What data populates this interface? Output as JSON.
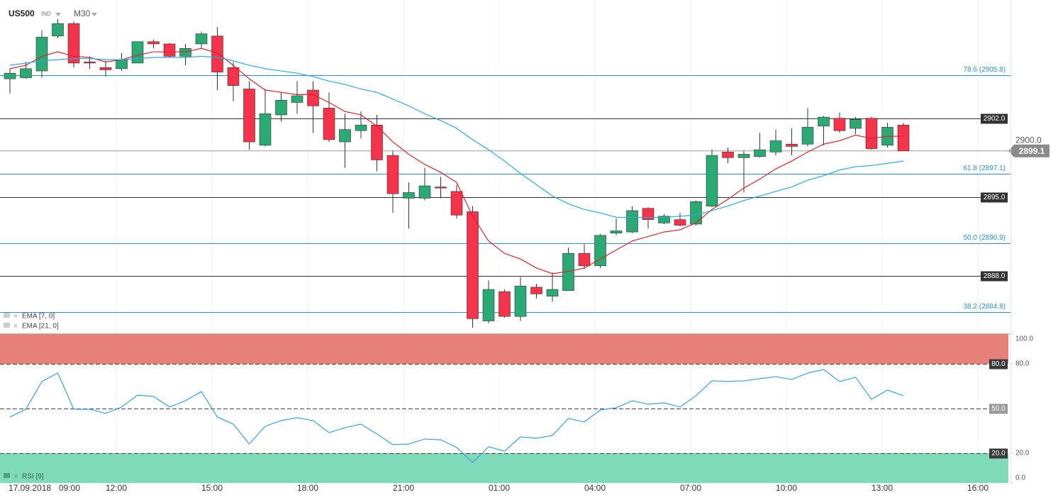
{
  "header": {
    "symbol": "US500",
    "kind": "IND",
    "timeframe": "M30"
  },
  "chart_data": [
    {
      "type": "candlestick",
      "x_start": [
        "17.09.2018",
        "09:00"
      ],
      "categories": [
        null,
        null,
        null,
        null,
        null,
        null,
        null,
        "12:00",
        null,
        null,
        null,
        null,
        null,
        "15:00",
        null,
        null,
        null,
        null,
        null,
        "18:00",
        null,
        null,
        null,
        null,
        null,
        "21:00",
        null,
        null,
        null,
        null,
        null,
        "01:00",
        null,
        null,
        null,
        null,
        null,
        "04:00",
        null,
        null,
        null,
        null,
        null,
        "07:00",
        null,
        null,
        null,
        null,
        null,
        "10:00",
        null,
        null,
        null,
        null,
        null,
        "13:00",
        null,
        null,
        null,
        null,
        null,
        "16:00",
        null
      ],
      "open": [
        2905.5,
        2905.6,
        2906.2,
        2909.3,
        2910.4,
        2907.0,
        2906.5,
        2906.4,
        2906.9,
        2908.8,
        2908.6,
        2907.5,
        2908.6,
        2909.3,
        2906.5,
        2904.6,
        2899.6,
        2902.3,
        2903.4,
        2904.5,
        2902.9,
        2899.9,
        2900.9,
        2901.4,
        2898.7,
        2894.9,
        2894.9,
        2895.9,
        2895.5,
        2893.7,
        2884.0,
        2886.6,
        2884.4,
        2887.0,
        2886.2,
        2886.7,
        2890.0,
        2888.9,
        2891.8,
        2891.9,
        2894.0,
        2892.7,
        2893.0,
        2892.6,
        2894.2,
        2899.0,
        2898.5,
        2898.6,
        2899.0,
        2899.7,
        2899.7,
        2901.3,
        2902.0,
        2901.1,
        2902.0,
        2899.6,
        2901.4,
        null,
        null,
        null,
        null,
        null,
        null
      ],
      "high": [
        2906.4,
        2907.0,
        2909.8,
        2910.8,
        2910.6,
        2907.5,
        2907.1,
        2907.8,
        2908.8,
        2909.0,
        2908.7,
        2908.6,
        2909.7,
        2910.1,
        2907.0,
        2905.3,
        2904.6,
        2904.3,
        2905.3,
        2905.3,
        2904.3,
        2902.4,
        2902.6,
        2902.3,
        2899.1,
        2896.3,
        2897.6,
        2896.8,
        2896.1,
        2894.2,
        2887.6,
        2886.8,
        2887.9,
        2887.3,
        2888.3,
        2890.5,
        2890.8,
        2891.7,
        2893.1,
        2894.2,
        2894.1,
        2893.5,
        2893.6,
        2894.7,
        2899.2,
        2899.4,
        2899.1,
        2900.7,
        2901.0,
        2901.1,
        2902.9,
        2902.2,
        2902.5,
        2902.1,
        2902.1,
        2901.6,
        2901.6,
        null,
        null,
        null,
        null,
        null,
        null
      ],
      "low": [
        2904.2,
        2905.5,
        2905.6,
        2909.1,
        2906.5,
        2906.4,
        2905.7,
        2906.2,
        2906.9,
        2908.2,
        2907.4,
        2906.7,
        2908.2,
        2904.5,
        2903.5,
        2899.2,
        2899.5,
        2901.7,
        2902.4,
        2900.7,
        2899.9,
        2897.6,
        2900.2,
        2897.3,
        2893.6,
        2892.2,
        2894.7,
        2894.9,
        2893.1,
        2883.4,
        2883.8,
        2884.3,
        2884.0,
        2886.0,
        2885.7,
        2886.7,
        2888.6,
        2888.7,
        2891.6,
        2891.8,
        2892.2,
        2892.6,
        2892.4,
        2892.5,
        2894.1,
        2898.0,
        2895.4,
        2898.5,
        2898.7,
        2898.7,
        2899.5,
        2899.6,
        2900.7,
        2900.6,
        2899.2,
        2899.4,
        2899.1,
        null,
        null,
        null,
        null,
        null,
        null
      ],
      "close": [
        2906.0,
        2906.4,
        2909.2,
        2910.4,
        2906.9,
        2906.9,
        2906.3,
        2907.2,
        2908.8,
        2908.6,
        2907.5,
        2908.2,
        2909.5,
        2906.1,
        2904.9,
        2899.9,
        2902.4,
        2903.6,
        2904.0,
        2903.1,
        2900.1,
        2901.0,
        2901.4,
        2898.3,
        2895.3,
        2895.4,
        2896.0,
        2895.8,
        2893.4,
        2884.2,
        2886.8,
        2884.4,
        2887.1,
        2886.4,
        2886.8,
        2890.0,
        2888.9,
        2891.6,
        2892.0,
        2893.8,
        2893.0,
        2893.3,
        2892.5,
        2894.6,
        2898.7,
        2898.5,
        2898.8,
        2899.2,
        2900.0,
        2899.5,
        2901.2,
        2902.1,
        2900.9,
        2901.9,
        2899.3,
        2901.2,
        2899.1,
        null,
        null,
        null,
        null,
        null,
        null
      ],
      "up_color": "#2aaa72",
      "down_color": "#f5334a",
      "series": [
        {
          "name": "EMA [7, 0]",
          "color": "#d9252c",
          "values": [
            2906.4,
            2906.7,
            2907.5,
            2907.9,
            2907.5,
            2907.4,
            2907.0,
            2907.2,
            2907.6,
            2907.9,
            2907.9,
            2907.9,
            2908.2,
            2907.8,
            2906.7,
            2905.5,
            2904.5,
            2904.3,
            2904.1,
            2904.1,
            2903.4,
            2902.6,
            2902.3,
            2901.3,
            2899.9,
            2898.8,
            2897.9,
            2897.2,
            2896.3,
            2893.3,
            2891.1,
            2890.0,
            2889.5,
            2888.7,
            2888.2,
            2888.4,
            2888.7,
            2889.5,
            2890.3,
            2891.1,
            2891.5,
            2891.9,
            2892.1,
            2892.7,
            2893.9,
            2894.8,
            2895.8,
            2896.6,
            2897.5,
            2898.2,
            2899.0,
            2899.7,
            2900.0,
            2900.5,
            2900.2,
            2900.4,
            2900.4,
            null,
            null,
            null,
            null,
            null,
            null
          ]
        },
        {
          "name": "EMA [21, 0]",
          "color": "#2ea8e0",
          "values": [
            2906.7,
            2906.9,
            2907.1,
            2907.2,
            2907.3,
            2907.3,
            2907.2,
            2907.2,
            2907.3,
            2907.4,
            2907.4,
            2907.4,
            2907.5,
            2907.4,
            2907.1,
            2906.7,
            2906.4,
            2906.2,
            2906.0,
            2905.7,
            2905.3,
            2905.0,
            2904.6,
            2904.3,
            2903.7,
            2903.1,
            2902.4,
            2901.8,
            2901.1,
            2900.1,
            2899.2,
            2898.2,
            2897.1,
            2896.1,
            2895.1,
            2894.4,
            2893.9,
            2893.6,
            2893.2,
            2893.2,
            2893.2,
            2893.2,
            2893.3,
            2893.4,
            2893.8,
            2894.2,
            2894.7,
            2895.1,
            2895.5,
            2895.9,
            2896.5,
            2896.9,
            2897.4,
            2897.7,
            2897.8,
            2898.0,
            2898.2,
            null,
            null,
            null,
            null,
            null,
            null
          ]
        }
      ],
      "ylim": [
        2882.9,
        2912.5
      ],
      "yticks": [
        {
          "value": 2900,
          "label": "2900.0"
        }
      ],
      "last_price": 2899.1,
      "levels": [
        {
          "value": 2902,
          "label": "2902.0"
        },
        {
          "value": 2895,
          "label": "2895.0"
        },
        {
          "value": 2888,
          "label": "2888.0"
        }
      ],
      "fib_levels": [
        {
          "value": 2905.8,
          "label": "78.6 (2905.8)"
        },
        {
          "value": 2897.1,
          "label": "61.8 (2897.1)"
        },
        {
          "value": 2890.9,
          "label": "50.0 (2890.9)"
        },
        {
          "value": 2884.8,
          "label": "38.2 (2884.8)"
        }
      ],
      "fib_color": "#2b8fd6",
      "level_color": "#333333",
      "grid": true
    },
    {
      "type": "line",
      "series": [
        {
          "name": "RSI [9]",
          "color": "#3aa0e0",
          "values": [
            44.3,
            49.5,
            68.1,
            73.8,
            49.5,
            49.5,
            46.7,
            51.0,
            59.0,
            58.1,
            51.0,
            55.2,
            61.4,
            44.3,
            39.5,
            26.2,
            38.1,
            41.9,
            43.8,
            41.9,
            33.8,
            37.1,
            39.5,
            32.9,
            25.7,
            26.2,
            29.5,
            29.0,
            23.8,
            13.8,
            24.3,
            21.4,
            31.0,
            30.0,
            31.9,
            43.3,
            41.0,
            49.0,
            50.5,
            55.2,
            52.9,
            53.8,
            51.0,
            58.6,
            68.6,
            68.1,
            68.6,
            70.0,
            71.4,
            69.5,
            73.8,
            76.2,
            68.1,
            71.0,
            56.2,
            62.4,
            58.6,
            null,
            null,
            null,
            null,
            null,
            null
          ]
        }
      ],
      "ylim": [
        0,
        100
      ],
      "yticks": [
        {
          "value": 100,
          "label": "100.0"
        },
        {
          "value": 80,
          "label": "80.0"
        },
        {
          "value": 20,
          "label": "20.0"
        },
        {
          "value": 0,
          "label": "0.0"
        }
      ],
      "levels": [
        {
          "value": 80,
          "label": "80.0",
          "color": "#3a3a3a"
        },
        {
          "value": 50,
          "label": "50.0",
          "color": "#9a9a9a"
        },
        {
          "value": 20,
          "label": "20.0",
          "color": "#3a3a3a"
        }
      ],
      "bands": [
        {
          "from": 80,
          "to": 100,
          "color": "#e8807a"
        },
        {
          "from": 0,
          "to": 20,
          "color": "#80d9b9"
        }
      ]
    }
  ]
}
